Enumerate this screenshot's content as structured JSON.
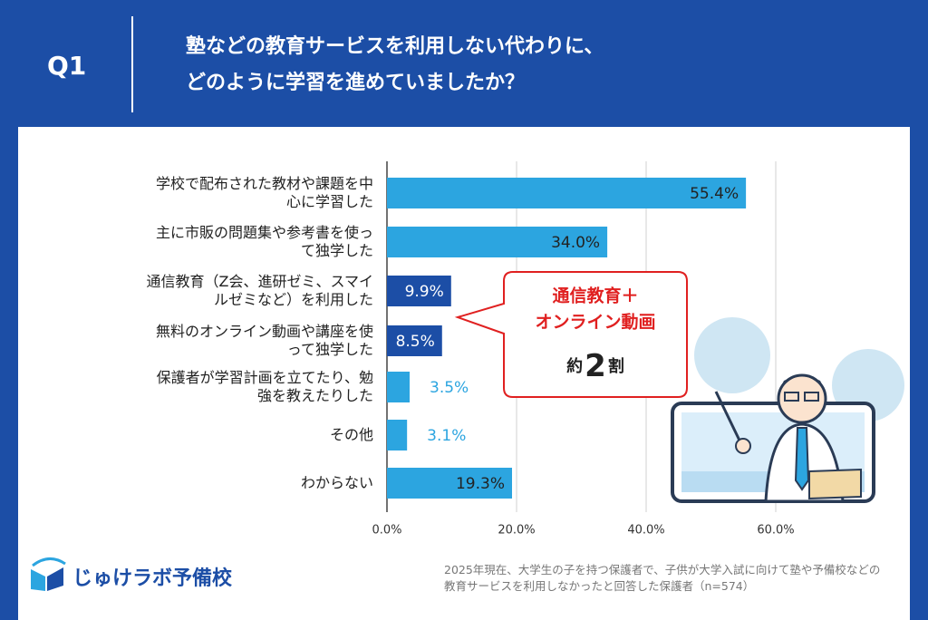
{
  "header": {
    "label": "Q1",
    "title_line1": "塾などの教育サービスを利用しない代わりに、",
    "title_line2": "どのように学習を進めていましたか？"
  },
  "chart_data": {
    "type": "bar",
    "orientation": "horizontal",
    "categories": [
      "学校で配布された教材や課題を中心に学習した",
      "主に市販の問題集や参考書を使って独学した",
      "通信教育（Z会、進研ゼミ、スマイルゼミなど）を利用した",
      "無料のオンライン動画や講座を使って独学した",
      "保護者が学習計画を立てたり、勉強を教えたりした",
      "その他",
      "わからない"
    ],
    "values": [
      55.4,
      34.0,
      9.9,
      8.5,
      3.5,
      3.1,
      19.3
    ],
    "value_labels": [
      "55.4%",
      "34.0%",
      "9.9%",
      "8.5%",
      "3.5%",
      "3.1%",
      "19.3%"
    ],
    "colors": [
      "#2ca5e0",
      "#2ca5e0",
      "#1c4ea6",
      "#1c4ea6",
      "#2ca5e0",
      "#2ca5e0",
      "#2ca5e0"
    ],
    "xlim": [
      0,
      70
    ],
    "xticks": [
      {
        "value": 0,
        "label": "0.0%"
      },
      {
        "value": 20,
        "label": "20.0%"
      },
      {
        "value": 40,
        "label": "40.0%"
      },
      {
        "value": 60,
        "label": "60.0%"
      }
    ],
    "grid": true,
    "annotation": {
      "line1": "通信教育＋",
      "line2": "オンライン動画",
      "prefix": "約",
      "number": "2",
      "suffix": "割"
    }
  },
  "footer": {
    "logo": "じゅけラボ予備校",
    "note_line1": "2025年現在、大学生の子を持つ保護者で、子供が大学入試に向けて塾や予備校などの",
    "note_line2": "教育サービスを利用しなかったと回答した保護者（n=574）"
  }
}
